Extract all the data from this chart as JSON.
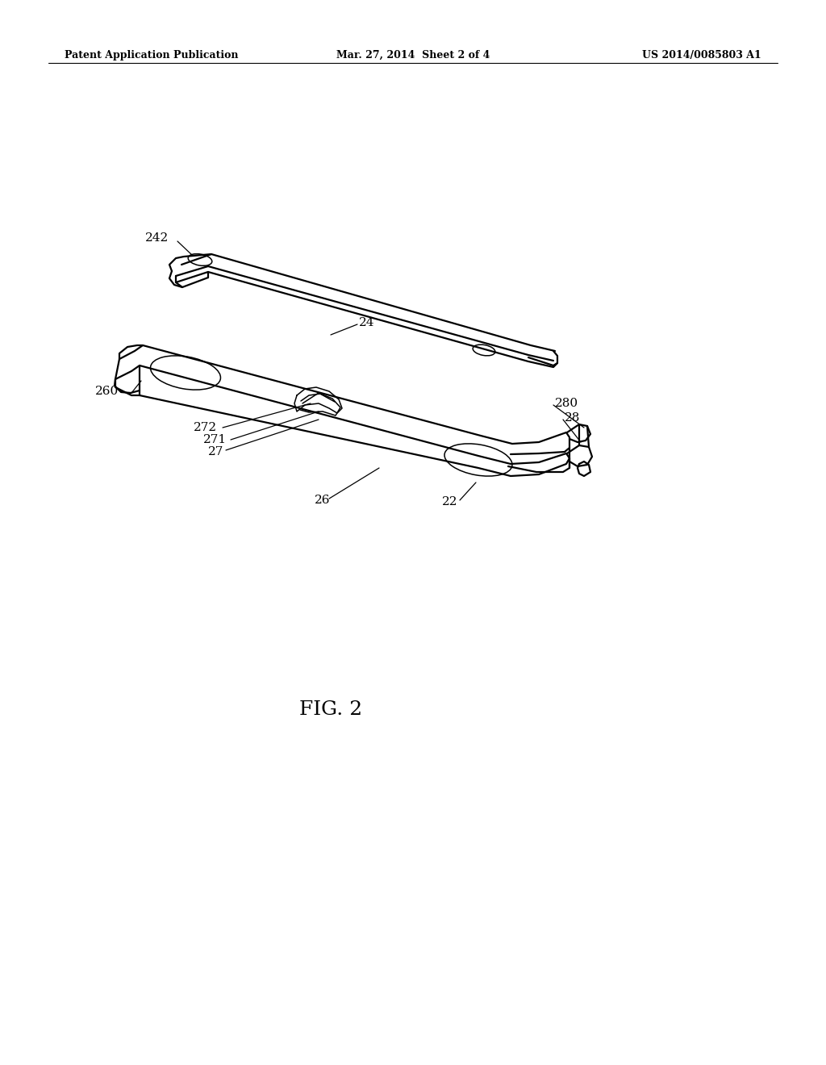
{
  "background_color": "#ffffff",
  "line_color": "#000000",
  "header_left": "Patent Application Publication",
  "header_mid": "Mar. 27, 2014  Sheet 2 of 4",
  "header_right": "US 2014/0085803 A1",
  "fig_label": "FIG. 2"
}
